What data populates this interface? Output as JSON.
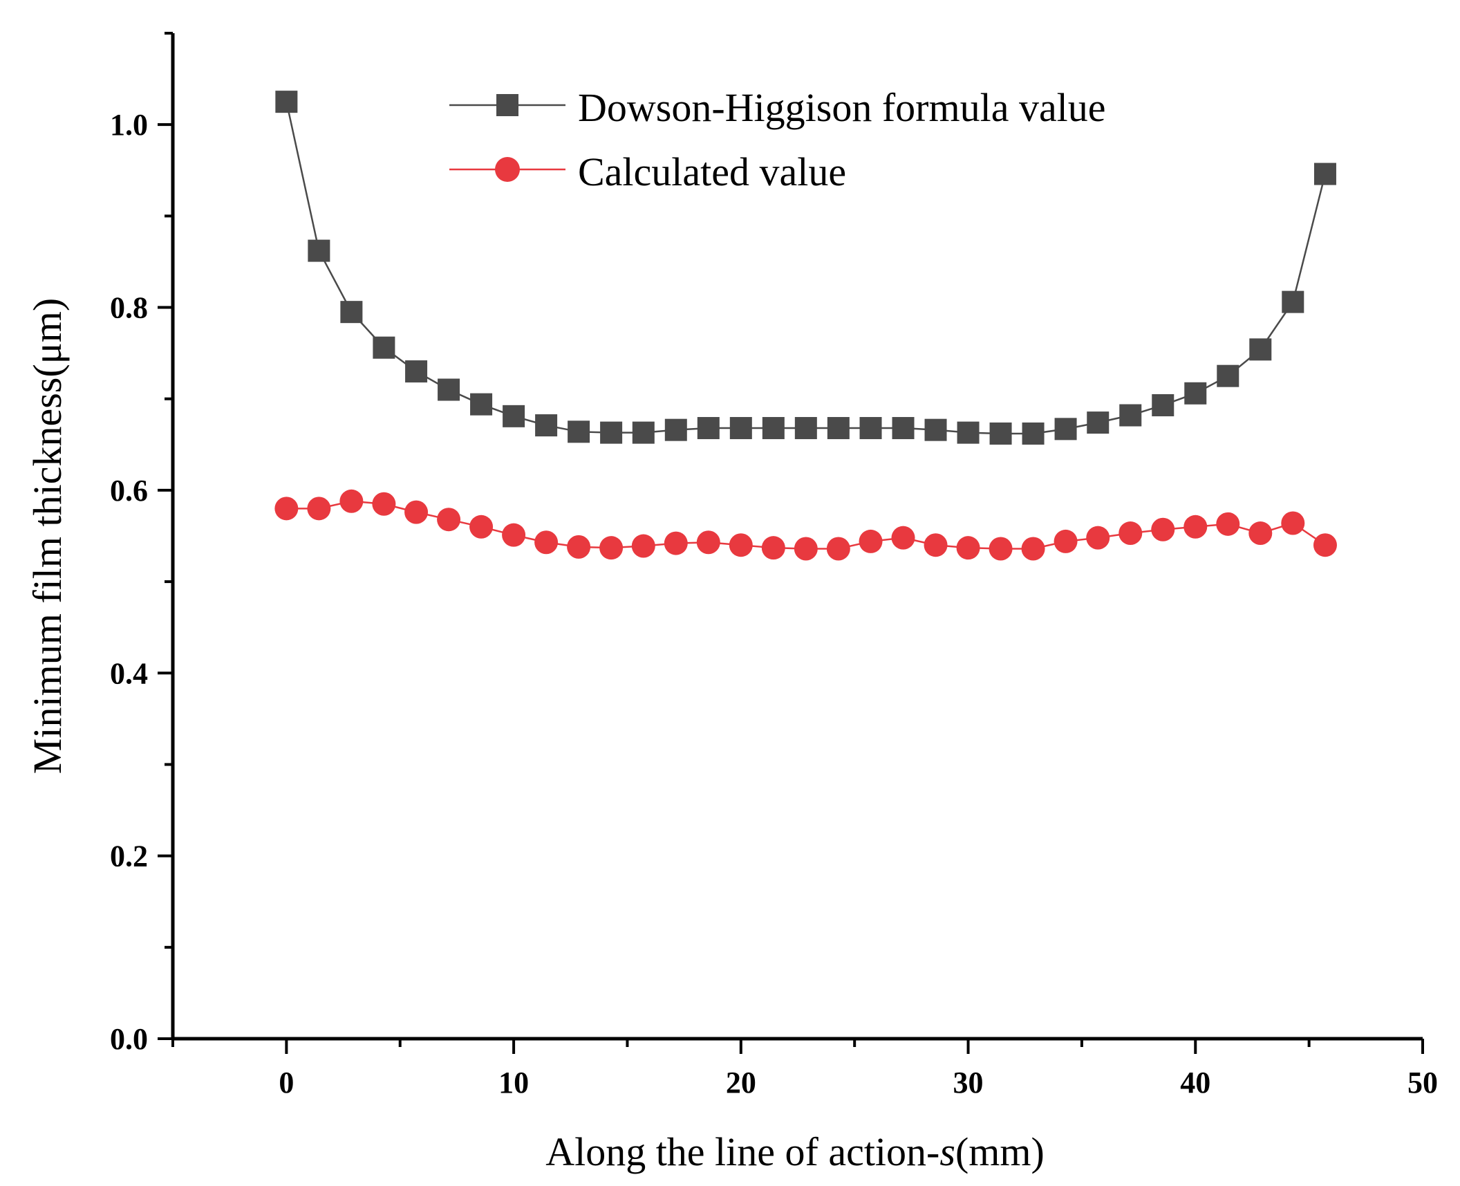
{
  "chart_data": {
    "type": "line",
    "title": "",
    "xlabel_prefix": "Along the line of action-",
    "xlabel_var": "s",
    "xlabel_suffix": "(mm)",
    "ylabel": "Minimum film thickness(μm)",
    "xlim": [
      -5,
      50
    ],
    "ylim": [
      0,
      1.1
    ],
    "x_ticks": [
      0,
      10,
      20,
      30,
      40,
      50
    ],
    "x_tick_labels": [
      "0",
      "10",
      "20",
      "30",
      "40",
      "50"
    ],
    "y_ticks": [
      0,
      0.2,
      0.4,
      0.6,
      0.8,
      1.0
    ],
    "y_tick_labels": [
      "0.0",
      "0.2",
      "0.4",
      "0.6",
      "0.8",
      "1.0"
    ],
    "grid": false,
    "legend_position": "top-center",
    "x": [
      0,
      1.43,
      2.86,
      4.29,
      5.71,
      7.14,
      8.57,
      10.0,
      11.43,
      12.86,
      14.29,
      15.71,
      17.14,
      18.57,
      20.0,
      21.43,
      22.86,
      24.29,
      25.71,
      27.14,
      28.57,
      30.0,
      31.43,
      32.86,
      34.29,
      35.71,
      37.14,
      38.57,
      40.0,
      41.43,
      42.86,
      44.29,
      45.71
    ],
    "series": [
      {
        "name": "Dowson-Higgison formula value",
        "color": "#4a4a4a",
        "marker": "square",
        "values": [
          1.025,
          0.862,
          0.795,
          0.756,
          0.73,
          0.71,
          0.694,
          0.681,
          0.671,
          0.664,
          0.663,
          0.663,
          0.666,
          0.668,
          0.668,
          0.668,
          0.668,
          0.668,
          0.668,
          0.668,
          0.666,
          0.663,
          0.662,
          0.662,
          0.667,
          0.674,
          0.682,
          0.693,
          0.706,
          0.725,
          0.754,
          0.806,
          0.946
        ]
      },
      {
        "name": "Calculated value",
        "color": "#e8393f",
        "marker": "circle",
        "values": [
          0.58,
          0.58,
          0.588,
          0.585,
          0.576,
          0.568,
          0.56,
          0.551,
          0.543,
          0.538,
          0.537,
          0.539,
          0.542,
          0.543,
          0.54,
          0.537,
          0.536,
          0.536,
          0.544,
          0.548,
          0.54,
          0.537,
          0.536,
          0.536,
          0.544,
          0.548,
          0.553,
          0.557,
          0.56,
          0.563,
          0.553,
          0.564,
          0.54
        ]
      }
    ]
  }
}
